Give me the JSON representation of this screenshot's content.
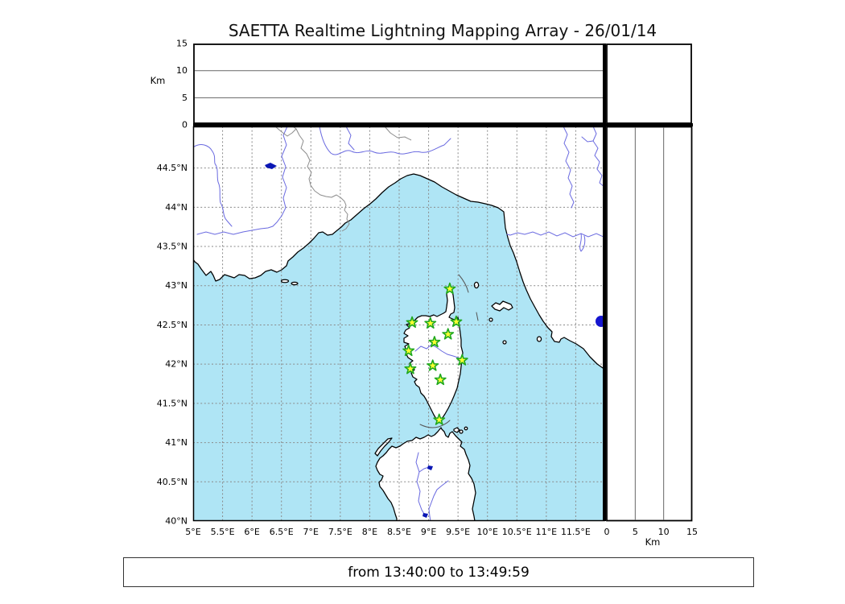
{
  "title": "SAETTA Realtime Lightning Mapping Array - 26/01/14",
  "status_bar": {
    "text": "from 13:40:00 to 13:49:59"
  },
  "axes": {
    "altitude": {
      "label": "Km",
      "ticks": [
        15,
        10,
        5,
        0
      ],
      "range": [
        0,
        15
      ],
      "gridlines": [
        5,
        10
      ]
    },
    "latitude": {
      "ticks": [
        {
          "value": 44.5,
          "label": "44.5°N"
        },
        {
          "value": 44.0,
          "label": "44°N"
        },
        {
          "value": 43.5,
          "label": "43.5°N"
        },
        {
          "value": 43.0,
          "label": "43°N"
        },
        {
          "value": 42.5,
          "label": "42.5°N"
        },
        {
          "value": 42.0,
          "label": "42°N"
        },
        {
          "value": 41.5,
          "label": "41.5°N"
        },
        {
          "value": 41.0,
          "label": "41°N"
        },
        {
          "value": 40.5,
          "label": "40.5°N"
        },
        {
          "value": 40.0,
          "label": "40°N"
        }
      ]
    },
    "longitude": {
      "ticks": [
        {
          "value": 5.0,
          "label": "5°E"
        },
        {
          "value": 5.5,
          "label": "5.5°E"
        },
        {
          "value": 6.0,
          "label": "6°E"
        },
        {
          "value": 6.5,
          "label": "6.5°E"
        },
        {
          "value": 7.0,
          "label": "7°E"
        },
        {
          "value": 7.5,
          "label": "7.5°E"
        },
        {
          "value": 8.0,
          "label": "8°E"
        },
        {
          "value": 8.5,
          "label": "8.5°E"
        },
        {
          "value": 9.0,
          "label": "9°E"
        },
        {
          "value": 9.5,
          "label": "9.5°E"
        },
        {
          "value": 10.0,
          "label": "10°E"
        },
        {
          "value": 10.5,
          "label": "10.5°E"
        },
        {
          "value": 11.0,
          "label": "11°E"
        },
        {
          "value": 11.5,
          "label": "11.5°E"
        }
      ]
    },
    "distance": {
      "label": "Km",
      "ticks": [
        0,
        5,
        10,
        15
      ],
      "range": [
        0,
        15
      ],
      "gridlines": [
        5,
        10
      ]
    }
  },
  "chart_data": {
    "type": "scatter",
    "title": "SAETTA Realtime Lightning Mapping Array - 26/01/14",
    "time_window": {
      "from": "13:40:00",
      "to": "13:49:59"
    },
    "map_extent": {
      "lon_min": 5.0,
      "lon_max": 12.0,
      "lat_min": 40.0,
      "lat_max": 45.03
    },
    "altitude_axis_km": {
      "min": 0,
      "max": 15
    },
    "stations": [
      {
        "lon": 9.36,
        "lat": 42.96
      },
      {
        "lon": 8.72,
        "lat": 42.53
      },
      {
        "lon": 9.03,
        "lat": 42.52
      },
      {
        "lon": 9.47,
        "lat": 42.54
      },
      {
        "lon": 9.33,
        "lat": 42.38
      },
      {
        "lon": 9.1,
        "lat": 42.28
      },
      {
        "lon": 8.66,
        "lat": 42.17
      },
      {
        "lon": 9.57,
        "lat": 42.05
      },
      {
        "lon": 8.69,
        "lat": 41.94
      },
      {
        "lon": 9.07,
        "lat": 41.98
      },
      {
        "lon": 9.2,
        "lat": 41.8
      },
      {
        "lon": 9.18,
        "lat": 41.29
      }
    ],
    "lightning_sources": []
  },
  "colors": {
    "sea": "#afe5f5",
    "land": "#ffffff",
    "station_fill": "#ffff33",
    "station_stroke": "#1fa81f",
    "river": "#6a6ae0",
    "lake": "#0a16b4",
    "lake_dot": "#1515cf",
    "grid": "#8a8a8a"
  }
}
